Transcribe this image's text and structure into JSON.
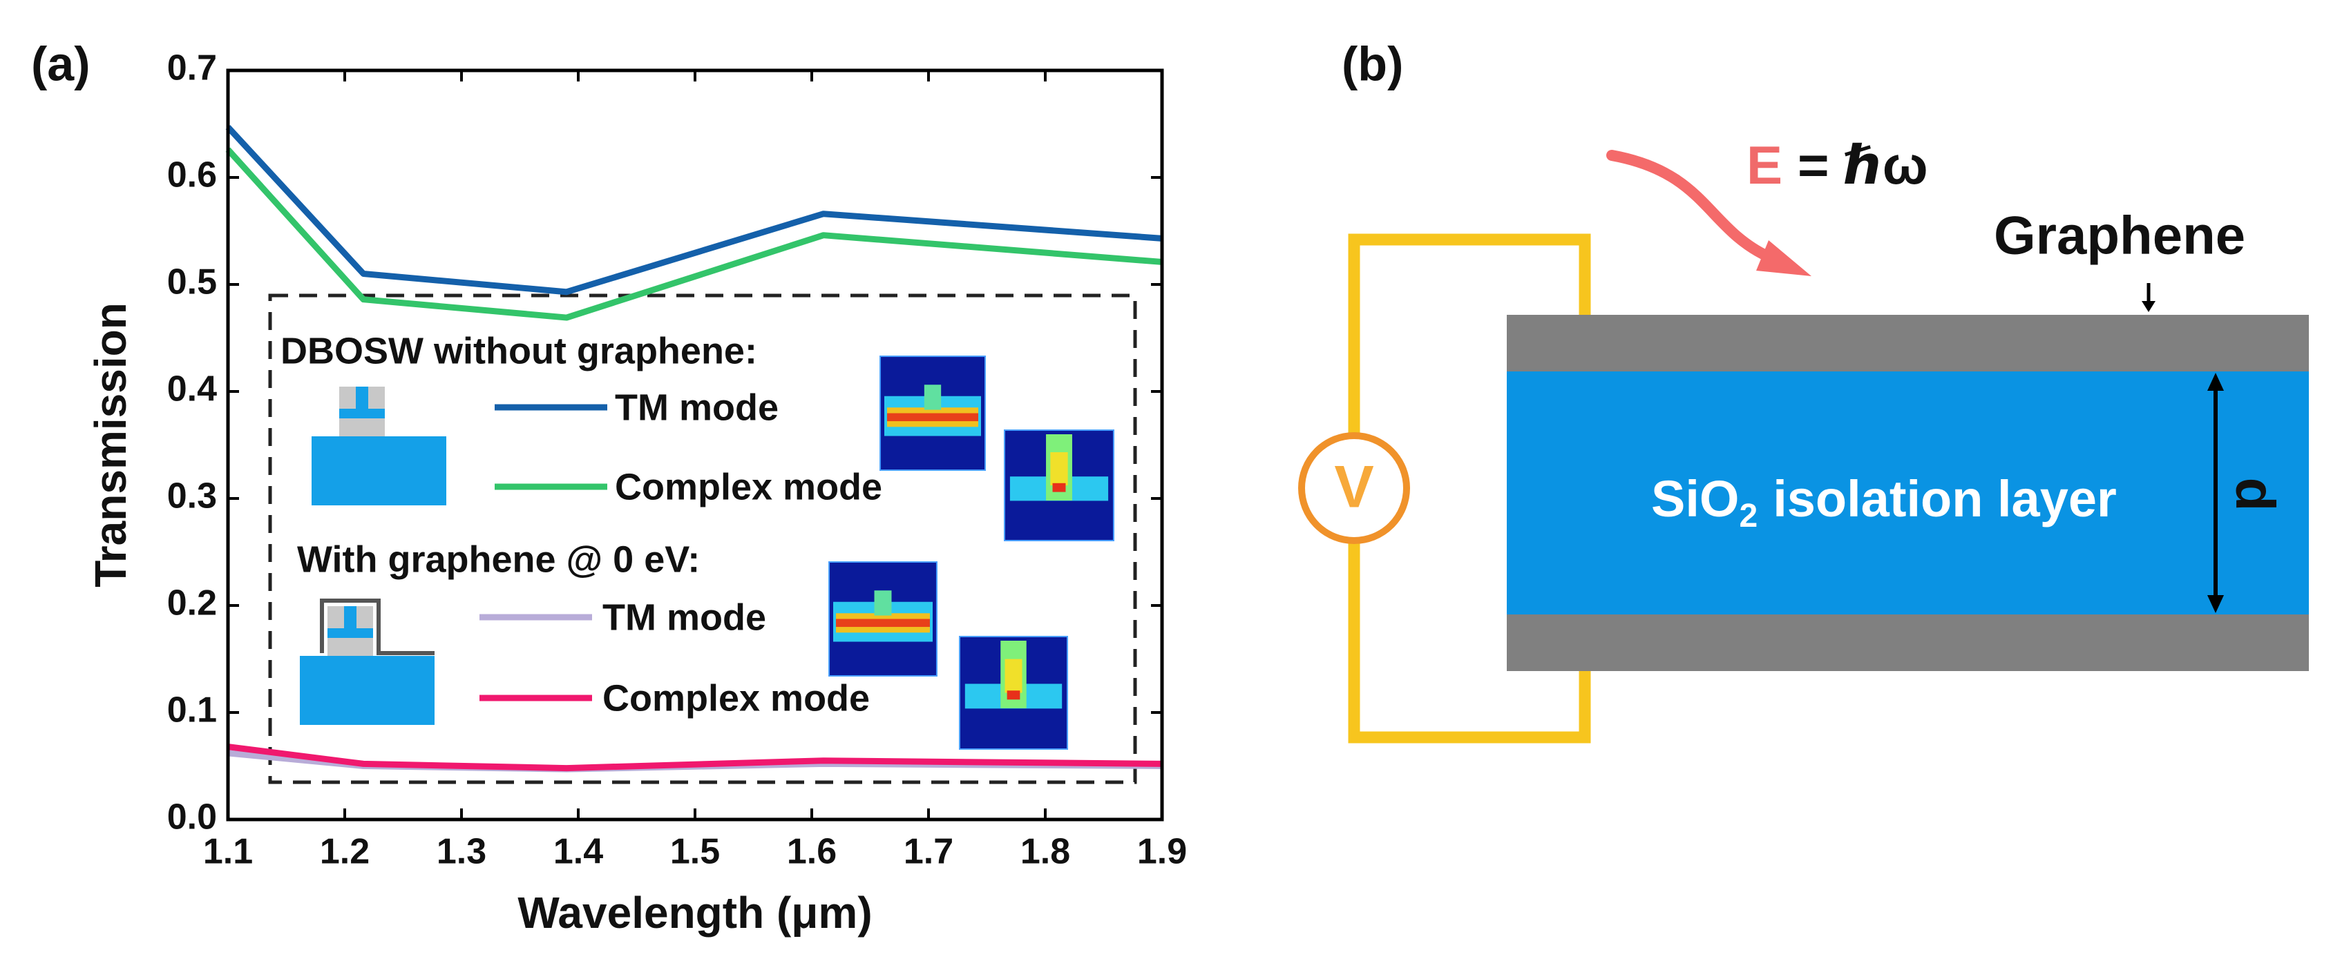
{
  "panels": [
    "(a)",
    "(b)"
  ],
  "chart_data": {
    "type": "line",
    "x_label": "Wavelength (μm)",
    "y_label": "Transmission",
    "x": [
      1.1,
      1.216,
      1.39,
      1.61,
      1.9
    ],
    "series": [
      {
        "name": "TM mode",
        "color": "#1460aa",
        "values": [
          0.647,
          0.51,
          0.493,
          0.566,
          0.543
        ]
      },
      {
        "name": "Complex mode",
        "color": "#33c46a",
        "values": [
          0.626,
          0.486,
          0.469,
          0.546,
          0.521
        ]
      },
      {
        "name": "TM mode",
        "color": "#b8acd8",
        "values": [
          0.062,
          0.05,
          0.047,
          0.052,
          0.05
        ]
      },
      {
        "name": "Complex mode",
        "color": "#f0186e",
        "values": [
          0.068,
          0.052,
          0.048,
          0.055,
          0.052
        ]
      }
    ],
    "legend_groups": [
      "DBOSW without graphene:",
      "With graphene @ 0 eV:"
    ],
    "xlim": [
      1.1,
      1.9
    ],
    "xticks": [
      1.1,
      1.2,
      1.3,
      1.4,
      1.5,
      1.6,
      1.7,
      1.8,
      1.9
    ],
    "ylim": [
      0,
      0.7
    ],
    "yticks": [
      {
        "value": 0,
        "label": "0.0"
      },
      0.1,
      0.2,
      0.3,
      0.4,
      0.5,
      0.6,
      0.7
    ]
  },
  "diagram": {
    "photon_symbol": "E",
    "photon_energy": "= ℏω",
    "graphene_label": "Graphene",
    "voltage_label": "V",
    "layer_label": [
      "SiO",
      "2",
      "isolation layer"
    ],
    "thickness_label": "d"
  }
}
